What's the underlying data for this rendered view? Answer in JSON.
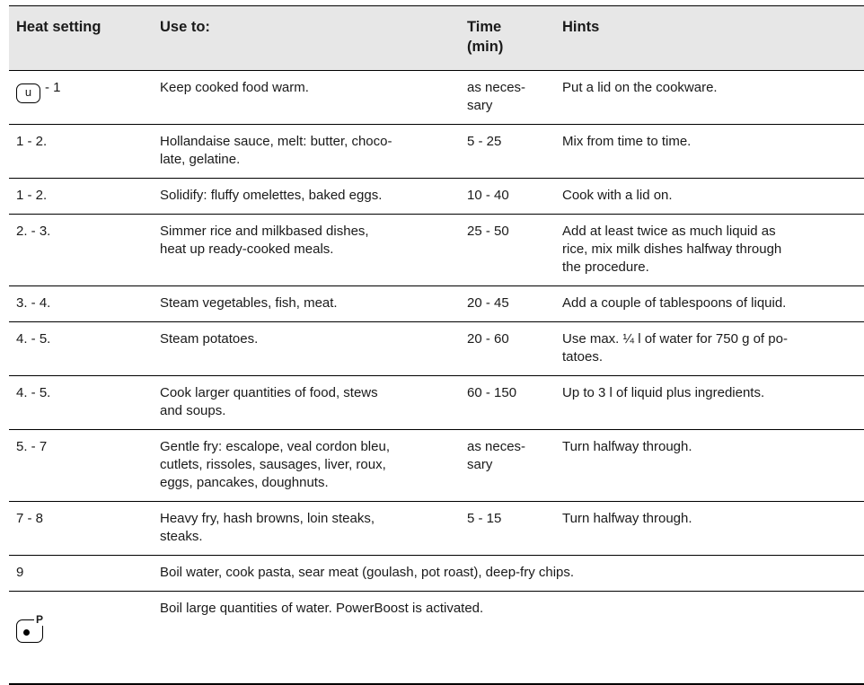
{
  "page": {
    "background": "#ffffff",
    "text_color": "#1a1a1a",
    "header_bg": "#e7e7e7",
    "line_color": "#000000"
  },
  "table": {
    "headers": {
      "heat": "Heat setting",
      "use": "Use to:",
      "time": "Time\n(min)",
      "hints": "Hints"
    },
    "icons": {
      "keep_warm": "u",
      "powerboost": "P"
    },
    "rows": [
      {
        "heat": "- 1",
        "use": "Keep cooked food warm.",
        "time": "as neces-\nsary",
        "hints": "Put a lid on the cookware."
      },
      {
        "heat": "1 - 2.",
        "use": "Hollandaise sauce, melt: butter, choco-\nlate, gelatine.",
        "time": "5 - 25",
        "hints": "Mix from time to time."
      },
      {
        "heat": "1 - 2.",
        "use": "Solidify: fluffy omelettes, baked eggs.",
        "time": "10 - 40",
        "hints": "Cook with a lid on."
      },
      {
        "heat": "2. - 3.",
        "use": "Simmer rice and milkbased dishes,\nheat up ready-cooked meals.",
        "time": "25 - 50",
        "hints": "Add at least twice as much liquid as\nrice, mix milk dishes halfway through\nthe procedure."
      },
      {
        "heat": "3. - 4.",
        "use": "Steam vegetables, fish, meat.",
        "time": "20 - 45",
        "hints": "Add a couple of tablespoons of liquid."
      },
      {
        "heat": "4. - 5.",
        "use": "Steam potatoes.",
        "time": "20 - 60",
        "hints": "Use max. ¼ l of water for 750 g of po-\ntatoes."
      },
      {
        "heat": "4. - 5.",
        "use": "Cook larger quantities of food, stews\nand soups.",
        "time": "60 - 150",
        "hints": "Up to 3 l of liquid plus ingredients."
      },
      {
        "heat": "5. - 7",
        "use": "Gentle fry: escalope, veal cordon bleu,\ncutlets, rissoles, sausages, liver, roux,\neggs, pancakes, doughnuts.",
        "time": "as neces-\nsary",
        "hints": "Turn halfway through."
      },
      {
        "heat": "7 - 8",
        "use": "Heavy fry, hash browns, loin steaks,\nsteaks.",
        "time": "5 - 15",
        "hints": "Turn halfway through."
      },
      {
        "heat": "9",
        "use": "Boil water, cook pasta, sear meat (goulash, pot roast), deep-fry chips."
      },
      {
        "use": "Boil large quantities of water. PowerBoost is activated."
      }
    ]
  }
}
